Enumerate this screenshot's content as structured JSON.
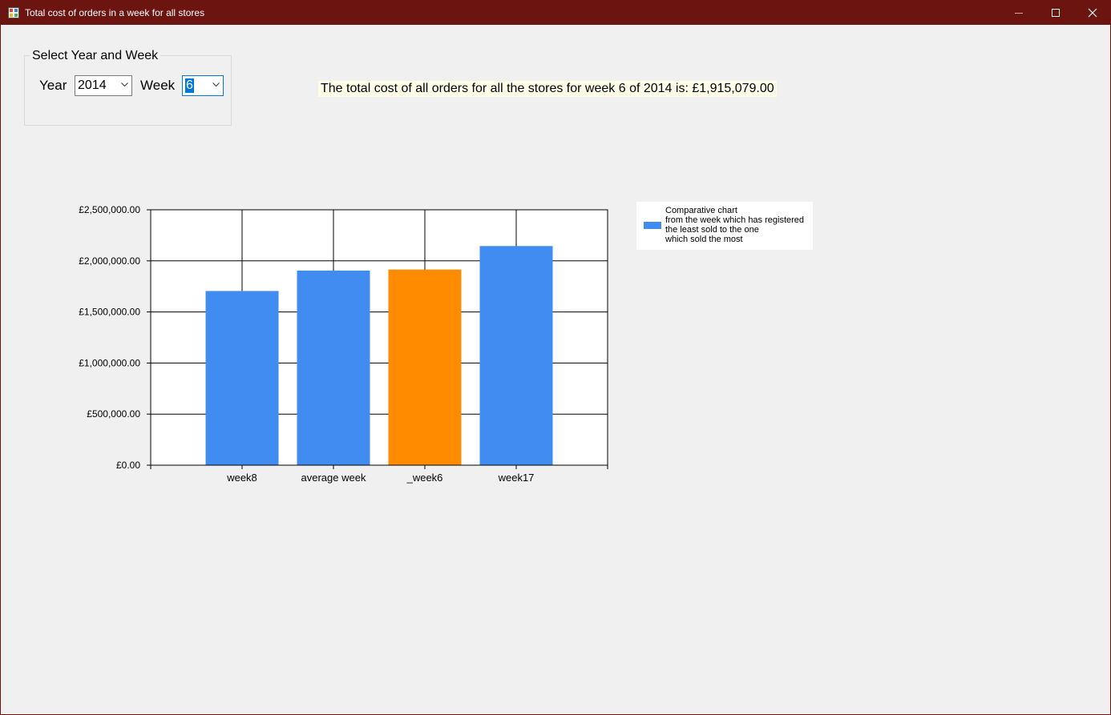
{
  "window": {
    "title": "Total cost of orders in a week for all stores",
    "titlebar_color": "#6b1410",
    "icons": [
      "app-icon",
      "minimize-icon",
      "maximize-icon",
      "close-icon"
    ]
  },
  "selector": {
    "group_title": "Select Year and Week",
    "year_label": "Year",
    "year_value": "2014",
    "week_label": "Week",
    "week_value": "6"
  },
  "summary_text": "The total cost of all orders for all the stores for week 6 of 2014 is: £1,915,079.00",
  "chart_data": {
    "type": "bar",
    "categories": [
      "week8",
      "average week",
      "_week6",
      "week17"
    ],
    "values": [
      1705000,
      1905000,
      1915079,
      2145000
    ],
    "bar_colors": [
      "#418cf0",
      "#418cf0",
      "#ff8c00",
      "#418cf0"
    ],
    "ylim": [
      0,
      2500000
    ],
    "yticks": [
      0,
      500000,
      1000000,
      1500000,
      2000000,
      2500000
    ],
    "ytick_labels": [
      "£0.00",
      "£500,000.00",
      "£1,000,000.00",
      "£1,500,000.00",
      "£2,000,000.00",
      "£2,500,000.00"
    ],
    "grid": true,
    "legend": {
      "position": "right",
      "color": "#418cf0",
      "lines": [
        "Comparative chart",
        "from the week which has registered",
        "the least sold to the one",
        "which sold the most"
      ]
    }
  }
}
